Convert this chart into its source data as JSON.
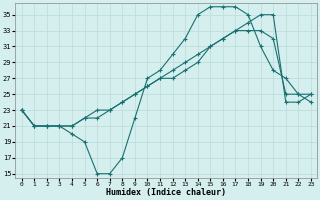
{
  "xlabel": "Humidex (Indice chaleur)",
  "bg_color": "#d5eeee",
  "grid_color": "#c0dede",
  "line_color": "#1a7070",
  "xlim": [
    -0.5,
    23.5
  ],
  "ylim": [
    14.5,
    36.5
  ],
  "yticks": [
    15,
    17,
    19,
    21,
    23,
    25,
    27,
    29,
    31,
    33,
    35
  ],
  "xticks": [
    0,
    1,
    2,
    3,
    4,
    5,
    6,
    7,
    8,
    9,
    10,
    11,
    12,
    13,
    14,
    15,
    16,
    17,
    18,
    19,
    20,
    21,
    22,
    23
  ],
  "series": [
    {
      "x": [
        0,
        1,
        2,
        3,
        4,
        5,
        6,
        7,
        8,
        9,
        10,
        11,
        12,
        13,
        14,
        15,
        16,
        17,
        18,
        19,
        20,
        21,
        22,
        23
      ],
      "y": [
        23,
        21,
        21,
        21,
        20,
        19,
        15,
        15,
        17,
        22,
        27,
        28,
        30,
        32,
        35,
        36,
        36,
        36,
        35,
        31,
        28,
        27,
        25,
        24
      ]
    },
    {
      "x": [
        0,
        1,
        2,
        3,
        4,
        5,
        6,
        7,
        8,
        9,
        10,
        11,
        12,
        13,
        14,
        15,
        16,
        17,
        18,
        19,
        20,
        21,
        22,
        23
      ],
      "y": [
        23,
        21,
        21,
        21,
        21,
        22,
        22,
        23,
        24,
        25,
        26,
        27,
        27,
        28,
        29,
        31,
        32,
        33,
        33,
        33,
        32,
        25,
        25,
        25
      ]
    },
    {
      "x": [
        0,
        1,
        2,
        3,
        4,
        5,
        6,
        7,
        8,
        9,
        10,
        11,
        12,
        13,
        14,
        15,
        16,
        17,
        18,
        19,
        20,
        21,
        22,
        23
      ],
      "y": [
        23,
        21,
        21,
        21,
        21,
        22,
        23,
        23,
        24,
        25,
        26,
        27,
        28,
        29,
        30,
        31,
        32,
        33,
        34,
        35,
        35,
        24,
        24,
        25
      ]
    }
  ]
}
